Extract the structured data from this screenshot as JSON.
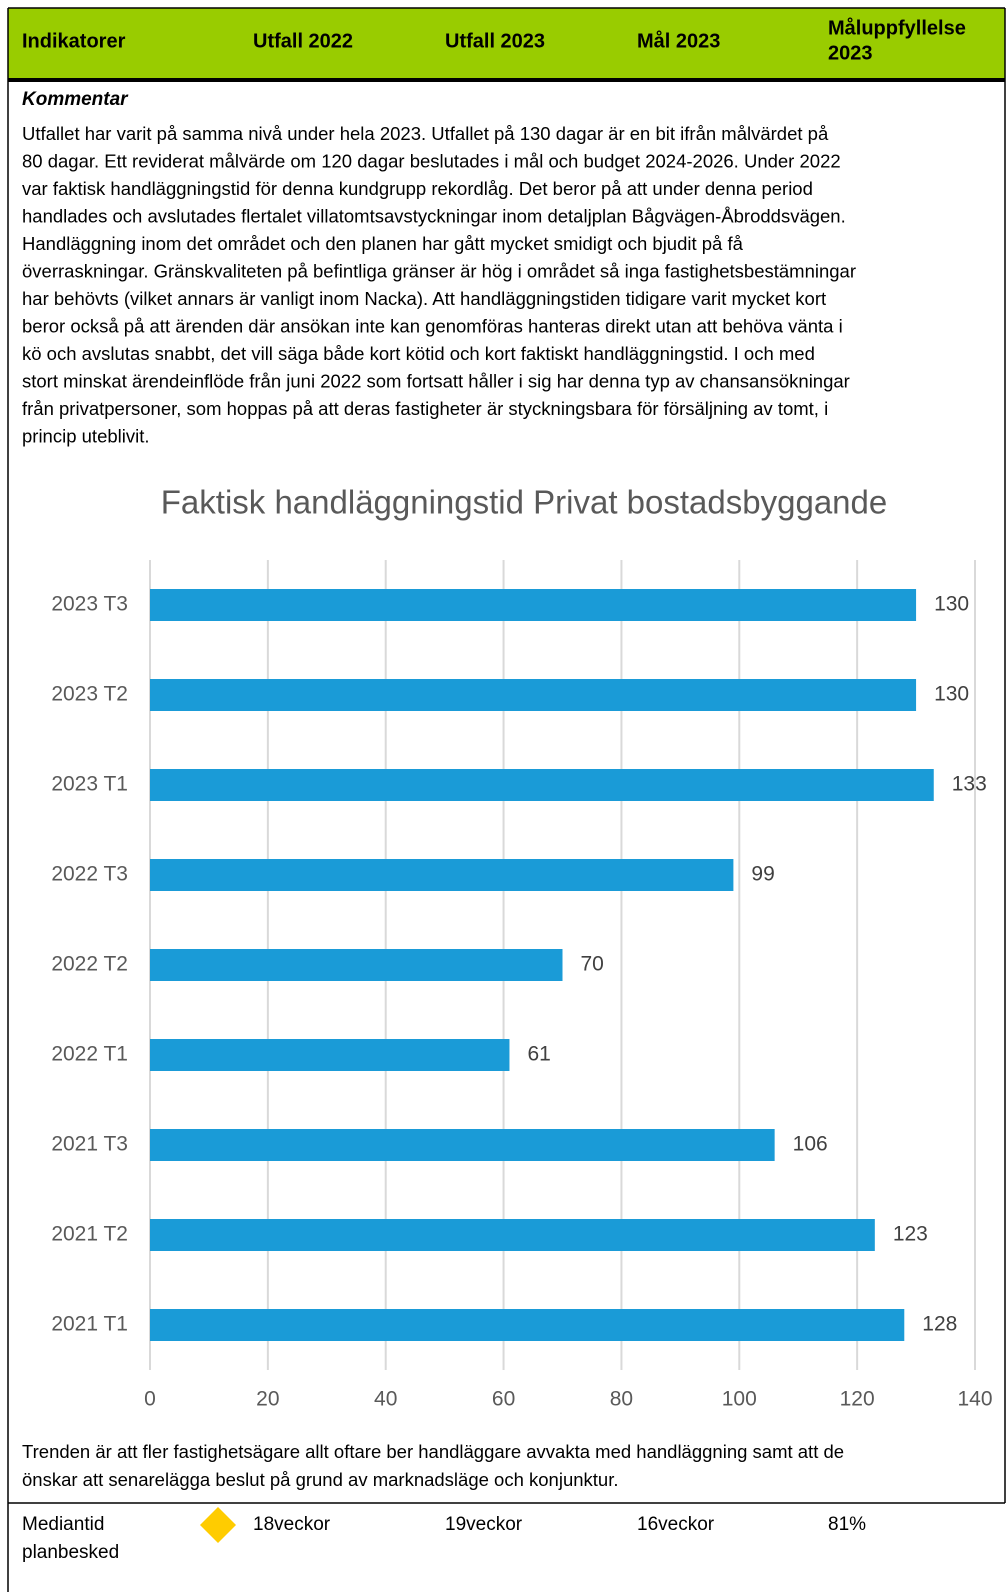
{
  "header": {
    "columns": [
      [
        "Indikatorer"
      ],
      [
        "Utfall 2022"
      ],
      [
        "Utfall 2023"
      ],
      [
        "Mål 2023"
      ],
      [
        "Måluppfyllelse",
        "2023"
      ]
    ]
  },
  "comment": {
    "heading": "Kommentar",
    "lines": [
      "Utfallet har varit på samma nivå under hela 2023. Utfallet på 130 dagar är en bit ifrån målvärdet på",
      "80 dagar. Ett reviderat målvärde om 120 dagar beslutades i mål och budget 2024-2026. Under 2022",
      "var faktisk handläggningstid för denna kundgrupp rekordlåg. Det beror på att under denna period",
      "handlades och avslutades flertalet villatomtsavstyckningar inom detaljplan Bågvägen-Åbroddsvägen.",
      "Handläggning inom det området och den planen har gått mycket smidigt och bjudit på få",
      "överraskningar. Gränskvaliteten på befintliga gränser är hög i området så inga fastighetsbestämningar",
      "har behövts (vilket annars är vanligt inom Nacka). Att handläggningstiden tidigare varit mycket kort",
      "beror också på att ärenden där ansökan inte kan genomföras hanteras direkt utan att behöva vänta i",
      "kö och avslutas snabbt, det vill säga både kort kötid och kort faktiskt handläggningstid. I och med",
      "stort minskat ärendeinflöde från juni 2022 som fortsatt håller i sig har denna typ av chansansökningar",
      "från privatpersoner, som hoppas på att deras fastigheter är styckningsbara för försäljning av tomt, i",
      "princip uteblivit."
    ]
  },
  "chart_data": {
    "type": "bar",
    "orientation": "horizontal",
    "title": "Faktisk handläggningstid Privat bostadsbyggande",
    "categories": [
      "2023 T3",
      "2023 T2",
      "2023 T1",
      "2022 T3",
      "2022 T2",
      "2022 T1",
      "2021 T3",
      "2021 T2",
      "2021 T1"
    ],
    "values": [
      130,
      130,
      133,
      99,
      70,
      61,
      106,
      123,
      128
    ],
    "color": "#1a9bd7",
    "xlim": [
      0,
      140
    ],
    "xticks": [
      0,
      20,
      40,
      60,
      80,
      100,
      120,
      140
    ],
    "grid": true
  },
  "after": {
    "lines": [
      "Trenden är att fler fastighetsägare allt oftare ber handläggare avvakta med handläggning samt att de",
      "önskar att senarelägga beslut på grund av marknadsläge och konjunktur."
    ]
  },
  "row": {
    "cells": [
      [
        "Mediantid",
        "planbesked"
      ],
      [
        "18veckor"
      ],
      [
        "19veckor"
      ],
      [
        "16veckor"
      ],
      [
        "81%"
      ]
    ]
  }
}
